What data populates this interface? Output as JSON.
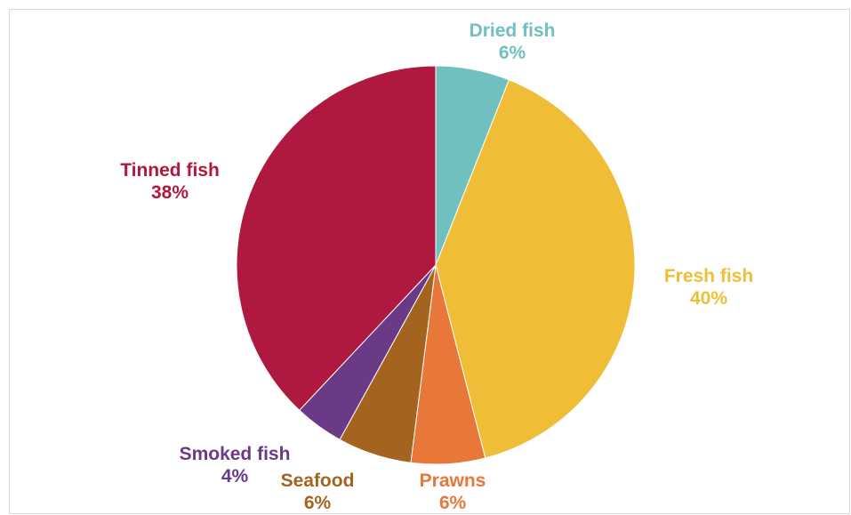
{
  "chart_data": {
    "type": "pie",
    "start_angle_deg": 0,
    "direction": "clockwise",
    "slices": [
      {
        "name": "Dried fish",
        "value": 6,
        "label": "6%",
        "color": "#6fc0bf"
      },
      {
        "name": "Fresh fish",
        "value": 40,
        "label": "40%",
        "color": "#f0bd36"
      },
      {
        "name": "Prawns",
        "value": 6,
        "label": "6%",
        "color": "#e8783a"
      },
      {
        "name": "Seafood",
        "value": 6,
        "label": "6%",
        "color": "#a4631f"
      },
      {
        "name": "Smoked fish",
        "value": 4,
        "label": "4%",
        "color": "#6b3a86"
      },
      {
        "name": "Tinned fish",
        "value": 38,
        "label": "38%",
        "color": "#b0193f"
      }
    ]
  }
}
